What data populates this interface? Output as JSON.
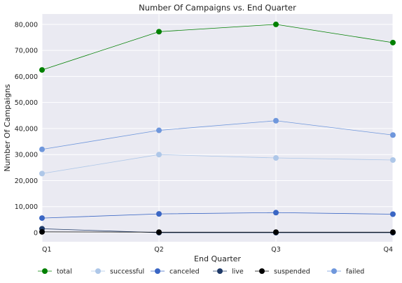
{
  "chart_data": {
    "type": "line",
    "title": "Number Of Campaigns vs. End Quarter",
    "xlabel": "End Quarter",
    "ylabel": "Number Of Campaigns",
    "categories": [
      "Q1",
      "Q2",
      "Q3",
      "Q4"
    ],
    "ylim": [
      -3500,
      84000
    ],
    "yticks": [
      0,
      10000,
      20000,
      30000,
      40000,
      50000,
      60000,
      70000,
      80000
    ],
    "ytick_labels": [
      "0",
      "10,000",
      "20,000",
      "30,000",
      "40,000",
      "50,000",
      "60,000",
      "70,000",
      "80,000"
    ],
    "grid": true,
    "legend_position": "bottom",
    "series": [
      {
        "name": "total",
        "color": "#008000",
        "values": [
          62500,
          77200,
          80000,
          73000
        ]
      },
      {
        "name": "successful",
        "color": "#aec7e8",
        "values": [
          22700,
          30000,
          28700,
          27900
        ]
      },
      {
        "name": "canceled",
        "color": "#3a66c4",
        "values": [
          5600,
          7200,
          7700,
          7100
        ]
      },
      {
        "name": "live",
        "color": "#1f3a68",
        "values": [
          1500,
          0,
          0,
          0
        ]
      },
      {
        "name": "suspended",
        "color": "#000000",
        "values": [
          300,
          200,
          200,
          200
        ]
      },
      {
        "name": "failed",
        "color": "#6f97dc",
        "values": [
          32000,
          39300,
          43000,
          37500
        ]
      }
    ]
  }
}
